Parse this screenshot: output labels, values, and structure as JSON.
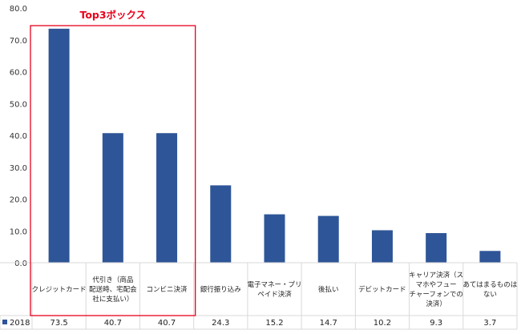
{
  "chart_data": {
    "type": "bar",
    "categories": [
      [
        "クレジットカード"
      ],
      [
        "代引き（商品",
        "配送時、宅配会",
        "社に支払い）"
      ],
      [
        "コンビニ決済"
      ],
      [
        "銀行振り込み"
      ],
      [
        "電子マネー・プリ",
        "ペイド決済"
      ],
      [
        "後払い"
      ],
      [
        "デビットカード"
      ],
      [
        "キャリア決済（ス",
        "マホやフュー",
        "チャーフォンでの",
        "決済）"
      ],
      [
        "あてはまるものは",
        "ない"
      ]
    ],
    "series": [
      {
        "name": "2018",
        "values": [
          73.5,
          40.7,
          40.7,
          24.3,
          15.2,
          14.7,
          10.2,
          9.3,
          3.7
        ]
      }
    ],
    "value_labels": [
      "73.5",
      "40.7",
      "40.7",
      "24.3",
      "15.2",
      "14.7",
      "10.2",
      "9.3",
      "3.7"
    ],
    "ylim": [
      0,
      80
    ],
    "yticks": [
      "0.0",
      "10.0",
      "20.0",
      "30.0",
      "40.0",
      "50.0",
      "60.0",
      "70.0",
      "80.0"
    ],
    "grid": false,
    "data_table": true,
    "highlight": {
      "label": "Top3ボックス",
      "categories": [
        0,
        1,
        2
      ]
    },
    "colors": {
      "bar": "#2e5597",
      "highlight": "#e8001c",
      "table_border": "#d9d9d9"
    }
  }
}
